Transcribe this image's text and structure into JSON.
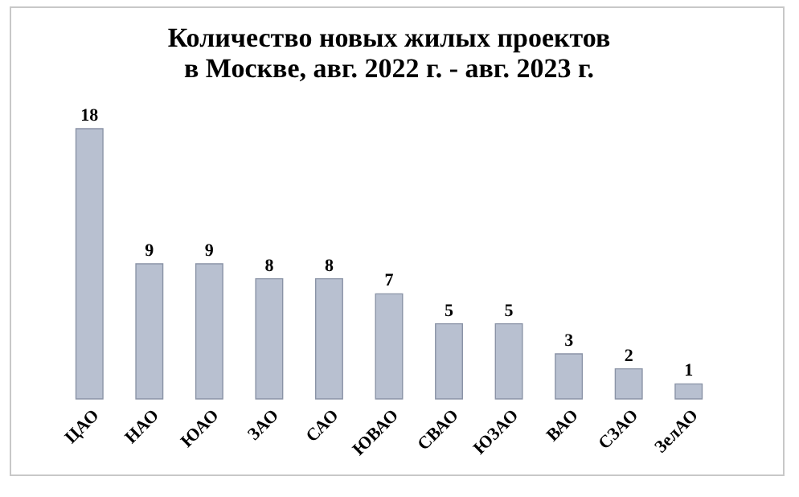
{
  "chart_data": {
    "type": "bar",
    "title": "Количество новых жилых проектов\nв Москве, авг. 2022 г. - авг. 2023 г.",
    "categories": [
      "ЦАО",
      "НАО",
      "ЮАО",
      "ЗАО",
      "САО",
      "ЮВАО",
      "СВАО",
      "ЮЗАО",
      "ВАО",
      "СЗАО",
      "ЗелАО"
    ],
    "values": [
      18,
      9,
      9,
      8,
      8,
      7,
      5,
      5,
      3,
      2,
      1
    ],
    "color": "#b8c0d0",
    "data_labels": true,
    "grid": false
  }
}
